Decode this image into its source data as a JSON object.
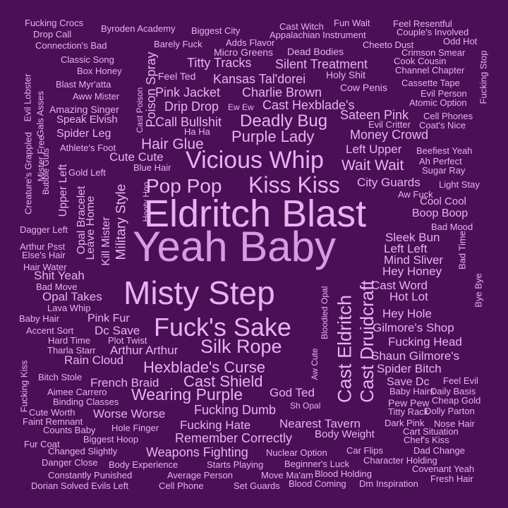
{
  "colors": {
    "background": "#4b0f57",
    "text_light": "#e6b3f0",
    "text_medium": "#d79ae6"
  },
  "words": [
    "Eldritch Blast",
    "Yeah Baby",
    "Misty Step",
    "Fuck's Sake",
    "Vicious Whip",
    "Kiss Kiss",
    "Pop Pop",
    "Hexblade's Curse",
    "Silk Rope",
    "Cast Eldritch",
    "Cast Druidcraft",
    "Wearing Purple",
    "Cast Shield",
    "Deadly Bug",
    "Purple Lady",
    "Hair Glue",
    "Wait Wait",
    "Remember Correctly",
    "Fucking Dumb",
    "Fucking Hate",
    "Weapons Fighting",
    "Nearest Tavern",
    "Silent Treatment",
    "Kansas Tal'dorei",
    "Charlie Brown",
    "Pink Jacket",
    "Cast Hexblade's",
    "Call Bullshit",
    "Titty Tracks",
    "Drip Drop",
    "Sateen Pink",
    "Money Crowd",
    "Left Upper",
    "City Guards",
    "Boop Boop",
    "Sleek Bun",
    "Left Left",
    "Mind Sliver",
    "Hey Honey",
    "Cast Word",
    "Hot Lot",
    "Hey Hole",
    "Gilmore's Shop",
    "Fucking Head",
    "Shaun Gilmore's",
    "Spider Bitch",
    "Save Dc",
    "Pew Pew",
    "God Ted",
    "Body Weight",
    "Cute Cute",
    "Rain Cloud",
    "French Braid",
    "Worse Worse",
    "Arthur Arthur",
    "Dc Save",
    "Pink Fur",
    "Opal Takes",
    "Shit Yeah",
    "Military Style",
    "Kill Mister",
    "Leave Home",
    "Opal Bracelet",
    "Upper Left",
    "Poison Spray",
    "Spider Leg",
    "Speak Elvish",
    "Amazing Singer",
    "Blast Myr'atta",
    "Classic Song",
    "Fucking Crocs",
    "Drop Call",
    "Connection's Bad",
    "Byroden Academy",
    "Biggest City",
    "Barely Fuck",
    "Adds Flavor",
    "Micro Greens",
    "Dead Bodies",
    "Cast Witch",
    "Fun Wait",
    "Feel Resentful",
    "Appalachian Instrument",
    "Couple's Involved",
    "Cheeto Dust",
    "Odd Hot",
    "Crimson Smear",
    "Cook Cousin",
    "Channel Chapter",
    "Fucking Stop",
    "Cassette Tape",
    "Evil Person",
    "Atomic Option",
    "Cell Phones",
    "Coat's Nice",
    "Evil Critter",
    "Beefiest Yeah",
    "Ah Perfect",
    "Sugar Ray",
    "Light Stay",
    "Aw Fuck",
    "Cool Cool",
    "Bad Mood",
    "Bad Time",
    "Bye Bye",
    "Feel Evil",
    "Daily Basis",
    "Cheap Gold",
    "Dolly Parton",
    "Nose Hair",
    "Chef's Kiss",
    "Dad Change",
    "Covenant Yeah",
    "Fresh Hair",
    "Character Holding",
    "Blood Holding",
    "Dm Inspiration",
    "Blood Coming",
    "Move Ma'am",
    "Set Guards",
    "Average Person",
    "Cell Phone",
    "Constantly Punished",
    "Dorian Solved Evils Left",
    "Body Experience",
    "Danger Close",
    "Changed Slightly",
    "Fur Coat",
    "Biggest Hoop",
    "Hole Finger",
    "Counts Baby",
    "Faint Remnant",
    "Cute Worth",
    "Binding Classes",
    "Aimee Carrero",
    "Bitch Stole",
    "Fucking Kiss",
    "Tharla Starr",
    "Hard Time",
    "Plot Twist",
    "Accent Sort",
    "Baby Hairs",
    "Dark Pink",
    "Cart Situation",
    "Titty Rack",
    "Car Flips",
    "Beginner's Luck",
    "Starts Playing",
    "Nuclear Option",
    "Sh Opal",
    "Aw Cute",
    "Bloodied Opal",
    "Baby Hair",
    "Lava Whip",
    "Bad Move",
    "Hair Water",
    "Else's Hair",
    "Arthur Psst",
    "Dagger Left",
    "Gold Left",
    "Athlete's Foot",
    "Evil Lobster",
    "Creature's Grappled",
    "Mister Free",
    "Gals Asses",
    "Bubble Guts",
    "Hooty Hoo",
    "Blue Hair",
    "Cast Poison",
    "Ha Ha",
    "Ew Ew",
    "Feel Ted",
    "Aww Mister",
    "Box Honey",
    "Holy Shit",
    "Cow Penis"
  ]
}
